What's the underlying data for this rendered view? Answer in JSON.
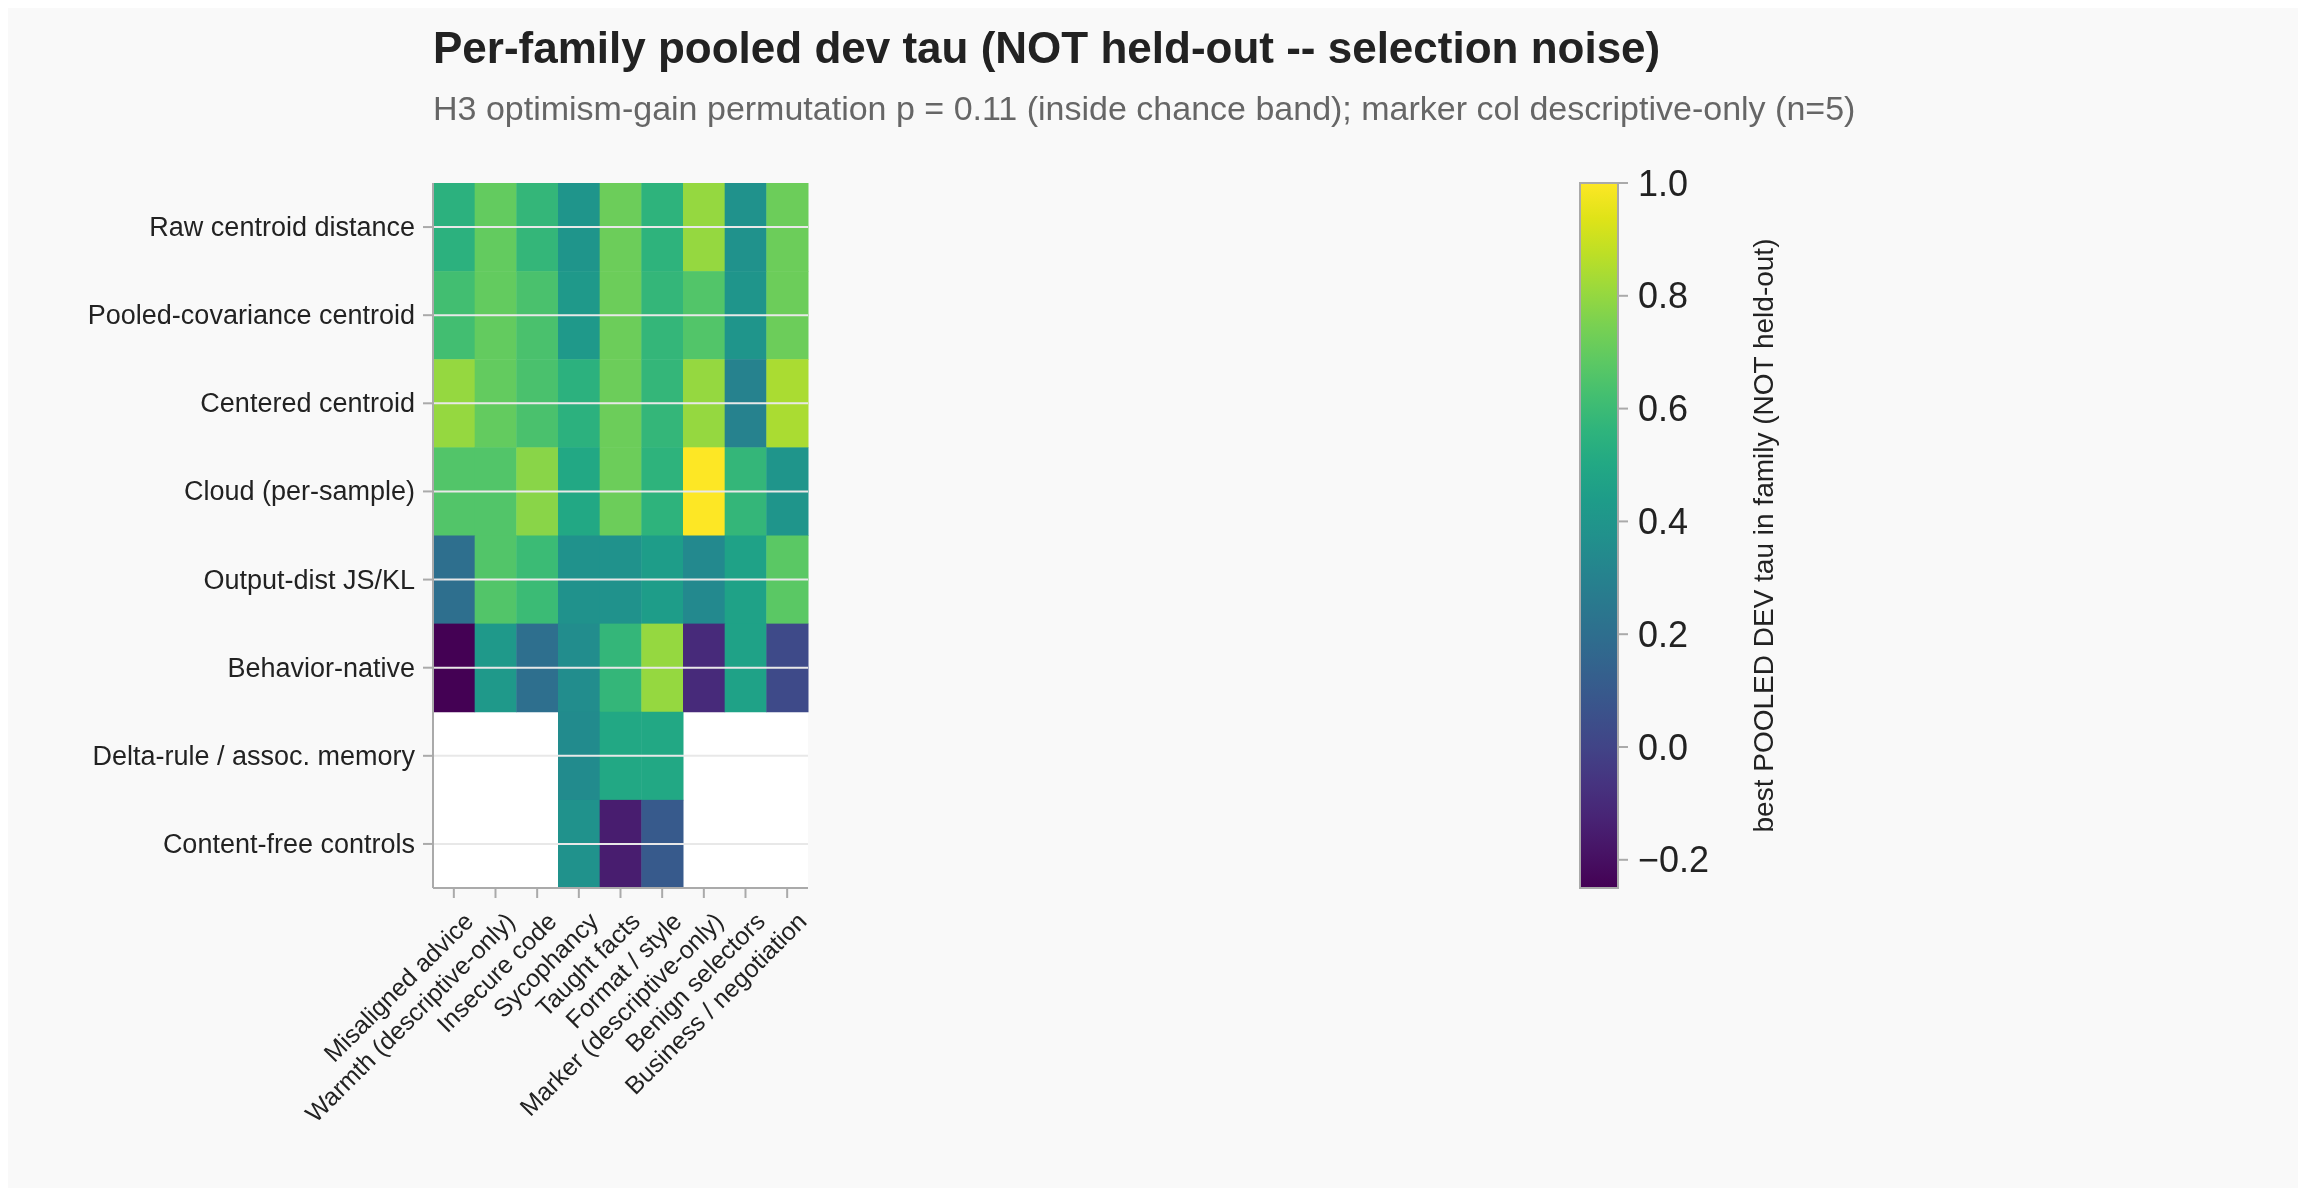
{
  "chart_data": {
    "type": "heatmap",
    "title": "Per-family pooled dev tau (NOT held-out -- selection noise)",
    "subtitle": "H3 optimism-gain permutation p = 0.11 (inside chance band); marker col descriptive-only (n=5)",
    "clabel": "best POOLED DEV tau in family (NOT held-out)",
    "categories": [
      "Misaligned advice",
      "Warmth (descriptive-only)",
      "Insecure code",
      "Sycophancy",
      "Taught facts",
      "Format / style",
      "Marker (descriptive-only)",
      "Benign selectors",
      "Business / negotiation"
    ],
    "y_categories": [
      "Raw centroid distance",
      "Pooled-covariance centroid",
      "Centered centroid",
      "Cloud (per-sample)",
      "Output-dist JS/KL",
      "Behavior-native",
      "Delta-rule / assoc. memory",
      "Content-free controls"
    ],
    "cells": [
      [
        0.55,
        0.7,
        0.58,
        0.4,
        0.72,
        0.56,
        0.8,
        0.38,
        0.72
      ],
      [
        0.62,
        0.7,
        0.64,
        0.42,
        0.72,
        0.58,
        0.66,
        0.4,
        0.72
      ],
      [
        0.8,
        0.7,
        0.64,
        0.55,
        0.72,
        0.58,
        0.8,
        0.3,
        0.84
      ],
      [
        0.66,
        0.66,
        0.78,
        0.5,
        0.72,
        0.56,
        1.0,
        0.58,
        0.4
      ],
      [
        0.2,
        0.66,
        0.6,
        0.38,
        0.38,
        0.44,
        0.34,
        0.47,
        0.68
      ],
      [
        -0.25,
        0.42,
        0.2,
        0.36,
        0.58,
        0.8,
        -0.1,
        0.47,
        0.03
      ],
      [
        null,
        null,
        null,
        0.35,
        0.5,
        0.5,
        null,
        null,
        null
      ],
      [
        null,
        null,
        null,
        0.38,
        -0.15,
        0.1,
        null,
        null,
        null
      ]
    ],
    "clim": [
      -0.25,
      1.0
    ],
    "cticks": [
      {
        "value": -0.2,
        "label": "−0.2"
      },
      {
        "value": 0,
        "label": "0.0"
      },
      0.2,
      0.4,
      0.6,
      0.8,
      {
        "value": 1,
        "label": "1.0"
      }
    ],
    "grid": "y"
  }
}
